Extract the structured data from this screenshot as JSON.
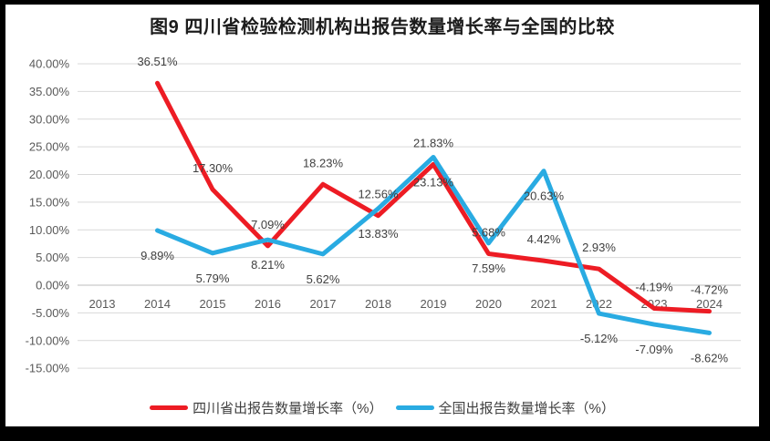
{
  "title": "图9  四川省检验检测机构出报告数量增长率与全国的比较",
  "colors": {
    "sichuan_line": "#ed1c24",
    "national_line": "#29abe2",
    "gridline": "#d9d9d9",
    "zero_axis_line": "#bdbdbd",
    "axis_text": "#595959",
    "data_label_text": "#404040",
    "frame_border": "#000000",
    "background": "#ffffff"
  },
  "chart_data": {
    "type": "line",
    "categories": [
      "2013",
      "2014",
      "2015",
      "2016",
      "2017",
      "2018",
      "2019",
      "2020",
      "2021",
      "2022",
      "2023",
      "2024"
    ],
    "series": [
      {
        "name": "四川省出报告数量增长率（%）",
        "color": "#ed1c24",
        "label_position": "above",
        "values": [
          null,
          36.51,
          17.3,
          7.09,
          18.23,
          12.56,
          21.83,
          5.68,
          4.42,
          2.93,
          -4.19,
          -4.72
        ],
        "labels": [
          "",
          "36.51%",
          "17.30%",
          "7.09%",
          "18.23%",
          "12.56%",
          "21.83%",
          "5.68%",
          "4.42%",
          "2.93%",
          "-4.19%",
          "-4.72%"
        ]
      },
      {
        "name": "全国出报告数量增长率（%）",
        "color": "#29abe2",
        "label_position": "below",
        "values": [
          null,
          9.89,
          5.79,
          8.21,
          5.62,
          13.83,
          23.13,
          7.59,
          20.63,
          -5.12,
          -7.09,
          -8.62
        ],
        "labels": [
          "",
          "9.89%",
          "5.79%",
          "8.21%",
          "5.62%",
          "13.83%",
          "23.13%",
          "7.59%",
          "20.63%",
          "-5.12%",
          "-7.09%",
          "-8.62%"
        ]
      }
    ],
    "y_axis": {
      "min": -15,
      "max": 40,
      "step": 5,
      "tick_values": [
        40,
        35,
        30,
        25,
        20,
        15,
        10,
        5,
        0,
        -5,
        -10,
        -15
      ],
      "tick_labels": [
        "40.00%",
        "35.00%",
        "30.00%",
        "25.00%",
        "20.00%",
        "15.00%",
        "10.00%",
        "5.00%",
        "0.00%",
        "-5.00%",
        "-10.00%",
        "-15.00%"
      ]
    },
    "grid": true,
    "legend_position": "bottom"
  }
}
